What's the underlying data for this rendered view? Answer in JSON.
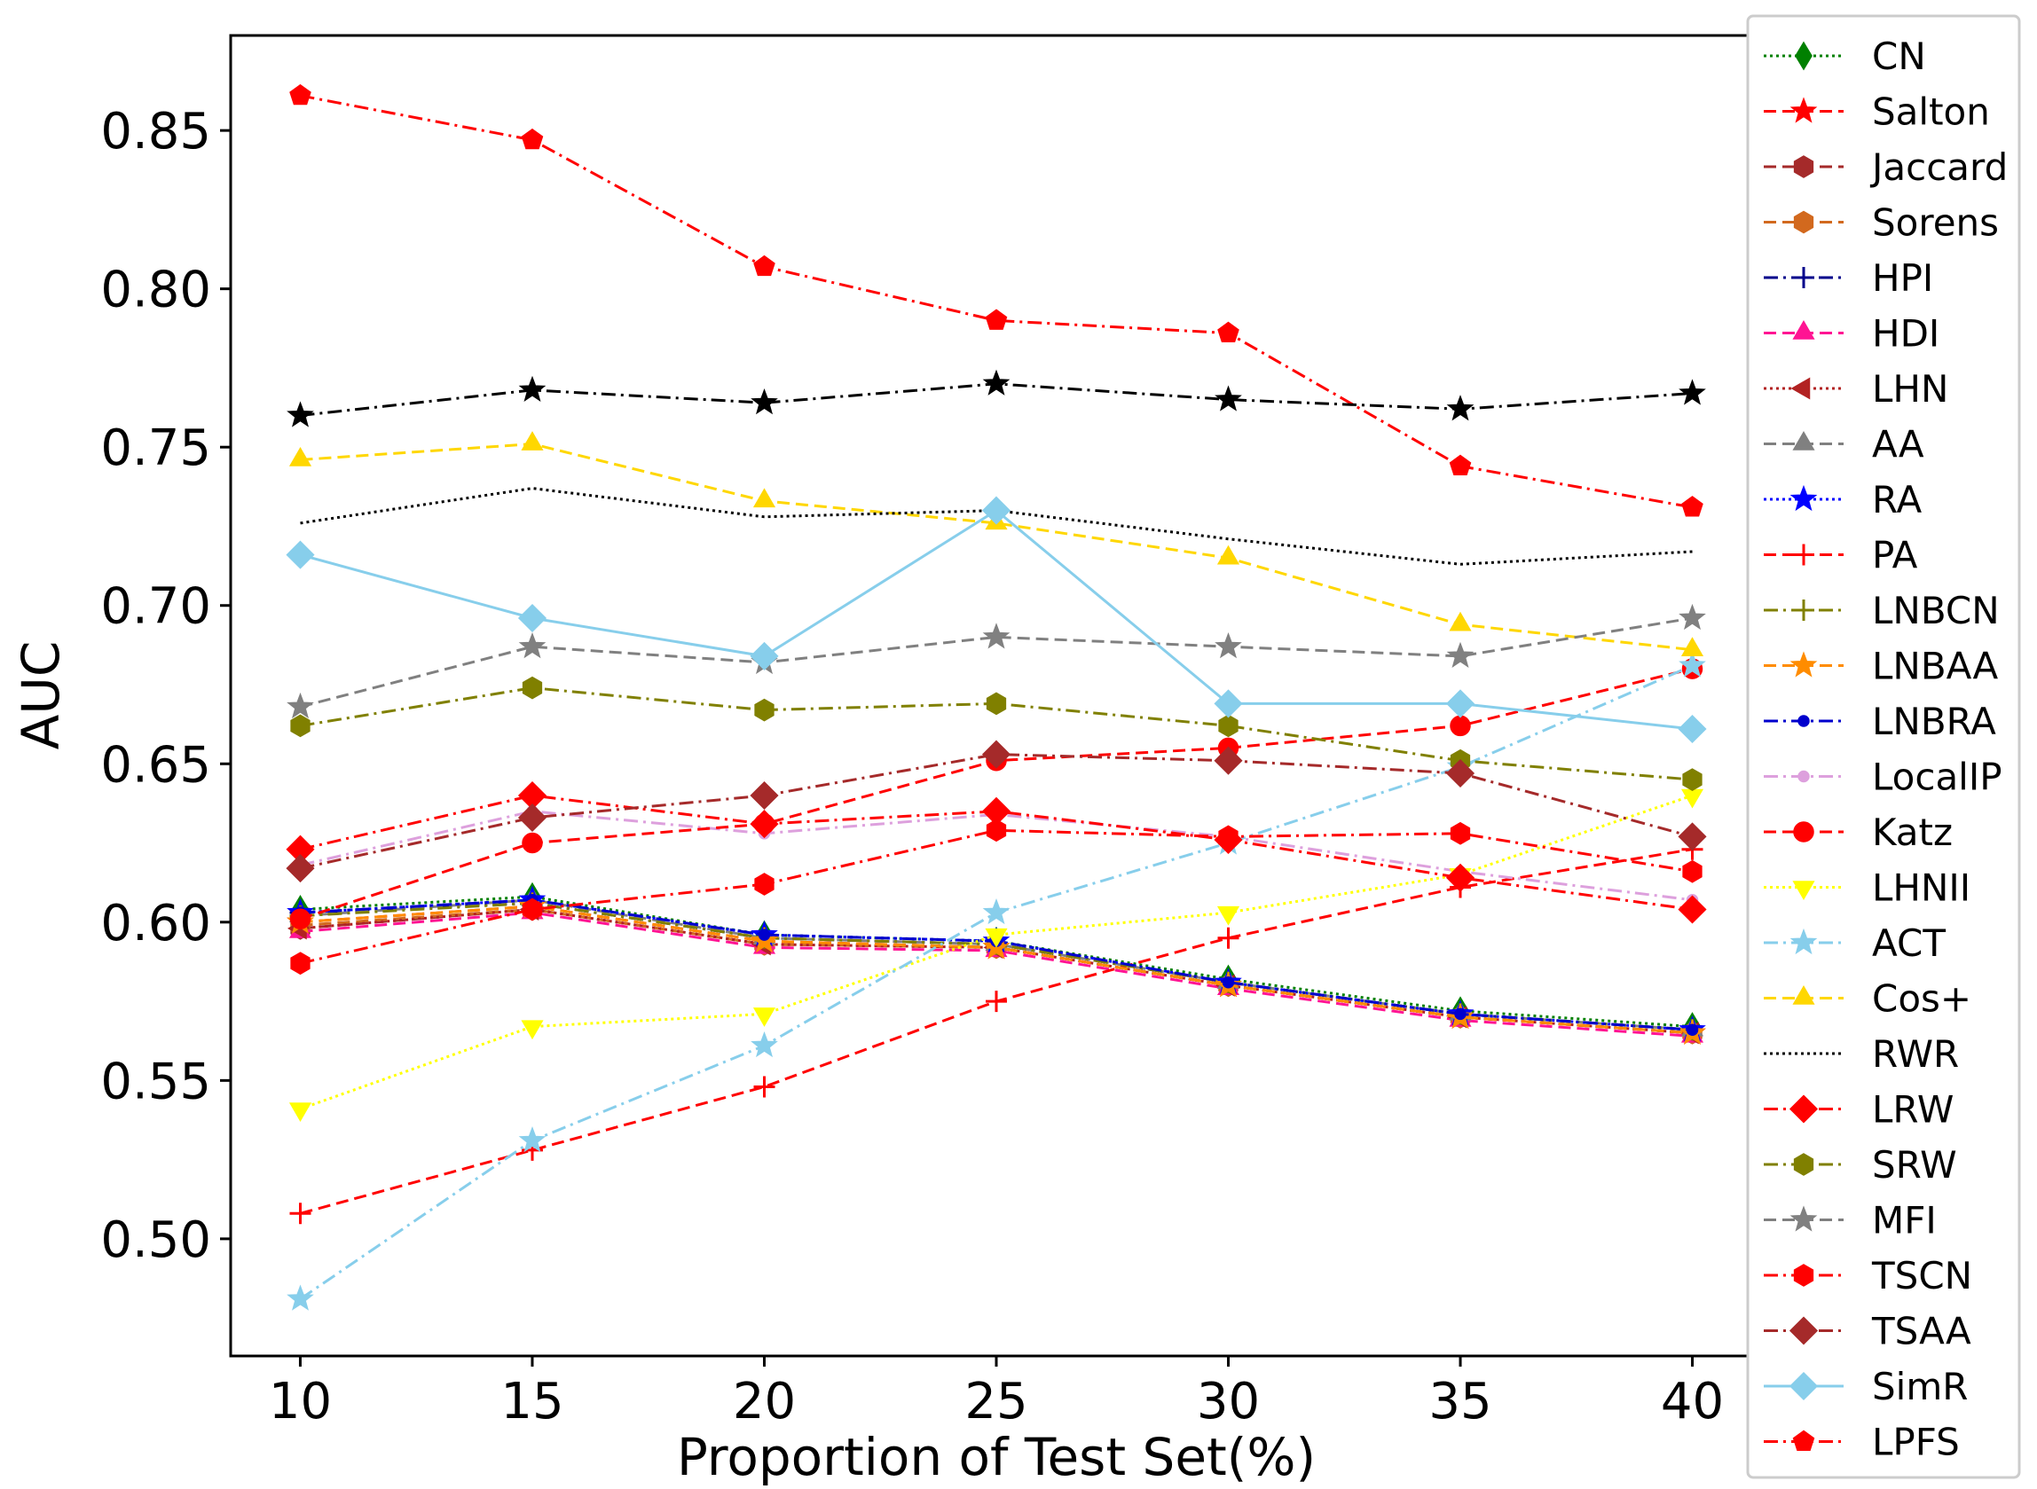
{
  "chart_data": {
    "type": "line",
    "title": "",
    "xlabel": "Proportion of Test Set(%)",
    "ylabel": "AUC",
    "x": [
      10,
      15,
      20,
      25,
      30,
      35,
      40
    ],
    "xticks": [
      "10",
      "15",
      "20",
      "25",
      "30",
      "35",
      "40"
    ],
    "yticks": [
      "0.50",
      "0.55",
      "0.60",
      "0.65",
      "0.70",
      "0.75",
      "0.80",
      "0.85"
    ],
    "xlim": [
      8.5,
      41.5
    ],
    "ylim": [
      0.463,
      0.88
    ],
    "legend_position": "right",
    "grid": false,
    "series": [
      {
        "name": "CN",
        "color": "#008000",
        "dash": "dotted",
        "marker": "thin_diamond",
        "values": [
          0.604,
          0.608,
          0.596,
          0.594,
          0.582,
          0.572,
          0.567
        ]
      },
      {
        "name": "Salton",
        "color": "#ff0000",
        "dash": "dashed",
        "marker": "star",
        "values": [
          0.6,
          0.605,
          0.594,
          0.592,
          0.58,
          0.57,
          0.565
        ]
      },
      {
        "name": "Jaccard",
        "color": "#a52a2a",
        "dash": "dashed",
        "marker": "hexagon",
        "values": [
          0.598,
          0.604,
          0.593,
          0.592,
          0.58,
          0.57,
          0.565
        ]
      },
      {
        "name": "Sorens",
        "color": "#d2691e",
        "dash": "dashed",
        "marker": "hexagon",
        "values": [
          0.599,
          0.604,
          0.593,
          0.592,
          0.58,
          0.57,
          0.565
        ]
      },
      {
        "name": "HPI",
        "color": "#00008b",
        "dash": "dashdot",
        "marker": "plus",
        "values": [
          0.603,
          0.606,
          0.595,
          0.593,
          0.581,
          0.571,
          0.566
        ]
      },
      {
        "name": "HDI",
        "color": "#ff1493",
        "dash": "dashed",
        "marker": "triangle",
        "values": [
          0.597,
          0.603,
          0.592,
          0.591,
          0.579,
          0.569,
          0.564
        ]
      },
      {
        "name": "LHN",
        "color": "#b22222",
        "dash": "dotted",
        "marker": "triangle_left",
        "values": [
          0.598,
          0.604,
          0.593,
          0.592,
          0.58,
          0.57,
          0.565
        ]
      },
      {
        "name": "AA",
        "color": "#808080",
        "dash": "dashed",
        "marker": "triangle",
        "values": [
          0.602,
          0.607,
          0.595,
          0.593,
          0.581,
          0.571,
          0.566
        ]
      },
      {
        "name": "RA",
        "color": "#0000ff",
        "dash": "dotted",
        "marker": "star",
        "values": [
          0.603,
          0.607,
          0.596,
          0.594,
          0.581,
          0.571,
          0.566
        ]
      },
      {
        "name": "PA",
        "color": "#ff0000",
        "dash": "dashed",
        "marker": "plus",
        "values": [
          0.508,
          0.528,
          0.548,
          0.575,
          0.595,
          0.611,
          0.623
        ]
      },
      {
        "name": "LNBCN",
        "color": "#808000",
        "dash": "dashdot",
        "marker": "plus",
        "values": [
          0.602,
          0.606,
          0.595,
          0.593,
          0.581,
          0.571,
          0.566
        ]
      },
      {
        "name": "LNBAA",
        "color": "#ff8c00",
        "dash": "dashed",
        "marker": "star",
        "values": [
          0.6,
          0.605,
          0.594,
          0.592,
          0.58,
          0.57,
          0.565
        ]
      },
      {
        "name": "LNBRA",
        "color": "#0000cd",
        "dash": "dashdot",
        "marker": "dot",
        "values": [
          0.603,
          0.607,
          0.596,
          0.594,
          0.581,
          0.571,
          0.566
        ]
      },
      {
        "name": "LocalIP",
        "color": "#dda0dd",
        "dash": "dashdot",
        "marker": "dot",
        "values": [
          0.618,
          0.635,
          0.628,
          0.634,
          0.627,
          0.616,
          0.607
        ]
      },
      {
        "name": "Katz",
        "color": "#ff0000",
        "dash": "dashed",
        "marker": "circle",
        "values": [
          0.601,
          0.625,
          0.631,
          0.651,
          0.655,
          0.662,
          0.68
        ]
      },
      {
        "name": "LHNII",
        "color": "#ffff00",
        "dash": "dotted",
        "marker": "triangle_down",
        "values": [
          0.541,
          0.567,
          0.571,
          0.596,
          0.603,
          0.615,
          0.64
        ]
      },
      {
        "name": "ACT",
        "color": "#87ceeb",
        "dash": "dashdot",
        "marker": "star",
        "values": [
          0.481,
          0.531,
          0.561,
          0.603,
          0.625,
          0.649,
          0.681
        ]
      },
      {
        "name": "Cos+",
        "color": "#ffd700",
        "dash": "dashed",
        "marker": "triangle",
        "values": [
          0.746,
          0.751,
          0.733,
          0.726,
          0.715,
          0.694,
          0.686
        ]
      },
      {
        "name": "RWR",
        "color": "#000000",
        "dash": "dotted",
        "marker": "none",
        "values": [
          0.726,
          0.737,
          0.728,
          0.73,
          0.721,
          0.713,
          0.717
        ]
      },
      {
        "name": "LRW",
        "color": "#ff0000",
        "dash": "dashdot",
        "marker": "diamond",
        "values": [
          0.623,
          0.64,
          0.631,
          0.635,
          0.626,
          0.614,
          0.604
        ]
      },
      {
        "name": "SRW",
        "color": "#808000",
        "dash": "dashdot",
        "marker": "hexagon",
        "values": [
          0.662,
          0.674,
          0.667,
          0.669,
          0.662,
          0.651,
          0.645
        ]
      },
      {
        "name": "MFI",
        "color": "#808080",
        "dash": "dashed",
        "marker": "star",
        "values": [
          0.668,
          0.687,
          0.682,
          0.69,
          0.687,
          0.684,
          0.696
        ]
      },
      {
        "name": "TSCN",
        "color": "#ff0000",
        "dash": "dashdot",
        "marker": "hexagon",
        "values": [
          0.587,
          0.604,
          0.612,
          0.629,
          0.627,
          0.628,
          0.616
        ]
      },
      {
        "name": "TSAA",
        "color": "#a52a2a",
        "dash": "dashdot",
        "marker": "diamond",
        "values": [
          0.617,
          0.633,
          0.64,
          0.653,
          0.651,
          0.647,
          0.627
        ]
      },
      {
        "name": "SimR",
        "color": "#87ceeb",
        "dash": "solid",
        "marker": "diamond",
        "values": [
          0.716,
          0.696,
          0.684,
          0.73,
          0.669,
          0.669,
          0.661
        ]
      },
      {
        "name": "LPFS",
        "color": "#ff0000",
        "dash": "dashdot",
        "marker": "pentagon",
        "values": [
          0.861,
          0.847,
          0.807,
          0.79,
          0.786,
          0.744,
          0.731
        ]
      },
      {
        "name": "",
        "color": "#000000",
        "dash": "dashdot",
        "marker": "star",
        "values": [
          0.76,
          0.768,
          0.764,
          0.77,
          0.765,
          0.762,
          0.767
        ]
      }
    ]
  }
}
